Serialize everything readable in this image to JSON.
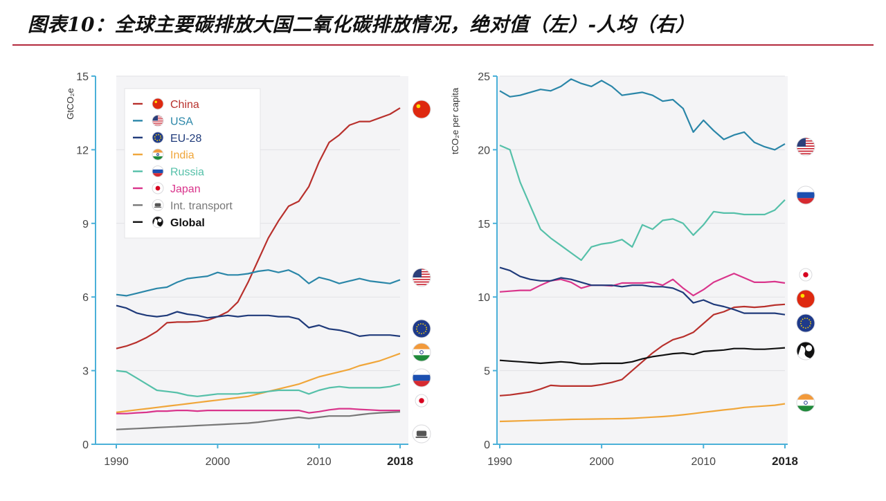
{
  "header": {
    "title": "图表10：全球主要碳排放大国二氧化碳排放情况，绝对值（左）-人均（右）"
  },
  "colors": {
    "China": "#b8302c",
    "USA": "#2a86a8",
    "EU-28": "#1f3a7a",
    "India": "#f0a63a",
    "Russia": "#55c0a9",
    "Japan": "#d9348b",
    "Int. transport": "#777777",
    "Global": "#111111",
    "header_rule": "#b3283c",
    "axis": "#4ab0d8"
  },
  "chart_data": [
    {
      "type": "line",
      "ylabel": "GtCO₂e",
      "xlim": [
        1990,
        2018
      ],
      "ylim": [
        0,
        15
      ],
      "xticks": [
        "1990",
        "2000",
        "2010",
        "2018"
      ],
      "yticks": [
        "0",
        "3",
        "6",
        "9",
        "12",
        "15"
      ],
      "legend_position": "top-left",
      "legend": [
        "China",
        "USA",
        "EU-28",
        "India",
        "Russia",
        "Japan",
        "Int. transport",
        "Global"
      ],
      "x": [
        1990,
        1991,
        1992,
        1993,
        1994,
        1995,
        1996,
        1997,
        1998,
        1999,
        2000,
        2001,
        2002,
        2003,
        2004,
        2005,
        2006,
        2007,
        2008,
        2009,
        2010,
        2011,
        2012,
        2013,
        2014,
        2015,
        2016,
        2017,
        2018
      ],
      "series": [
        {
          "name": "China",
          "values": [
            3.9,
            4.0,
            4.15,
            4.35,
            4.6,
            4.95,
            4.98,
            4.98,
            5.0,
            5.05,
            5.2,
            5.4,
            5.8,
            6.6,
            7.5,
            8.4,
            9.1,
            9.7,
            9.9,
            10.5,
            11.5,
            12.3,
            12.6,
            13.0,
            13.15,
            13.15,
            13.3,
            13.45,
            13.7
          ]
        },
        {
          "name": "USA",
          "values": [
            6.1,
            6.05,
            6.15,
            6.25,
            6.35,
            6.4,
            6.6,
            6.75,
            6.8,
            6.85,
            7.0,
            6.9,
            6.9,
            6.95,
            7.05,
            7.1,
            7.0,
            7.1,
            6.9,
            6.55,
            6.8,
            6.7,
            6.55,
            6.65,
            6.75,
            6.65,
            6.6,
            6.55,
            6.7
          ]
        },
        {
          "name": "EU-28",
          "values": [
            5.65,
            5.55,
            5.35,
            5.25,
            5.2,
            5.25,
            5.4,
            5.3,
            5.25,
            5.15,
            5.2,
            5.25,
            5.2,
            5.25,
            5.25,
            5.25,
            5.2,
            5.2,
            5.1,
            4.75,
            4.85,
            4.7,
            4.65,
            4.55,
            4.4,
            4.45,
            4.45,
            4.45,
            4.4
          ]
        },
        {
          "name": "India",
          "values": [
            1.3,
            1.35,
            1.4,
            1.45,
            1.5,
            1.55,
            1.6,
            1.65,
            1.7,
            1.75,
            1.8,
            1.85,
            1.9,
            1.95,
            2.05,
            2.15,
            2.25,
            2.35,
            2.45,
            2.6,
            2.75,
            2.85,
            2.95,
            3.05,
            3.2,
            3.3,
            3.4,
            3.55,
            3.7
          ]
        },
        {
          "name": "Russia",
          "values": [
            3.0,
            2.95,
            2.7,
            2.45,
            2.2,
            2.15,
            2.1,
            2.0,
            1.95,
            2.0,
            2.05,
            2.05,
            2.05,
            2.1,
            2.1,
            2.15,
            2.2,
            2.2,
            2.2,
            2.05,
            2.2,
            2.3,
            2.35,
            2.3,
            2.3,
            2.3,
            2.3,
            2.35,
            2.45
          ]
        },
        {
          "name": "Japan",
          "values": [
            1.25,
            1.25,
            1.28,
            1.3,
            1.35,
            1.35,
            1.38,
            1.38,
            1.35,
            1.38,
            1.38,
            1.38,
            1.38,
            1.38,
            1.38,
            1.38,
            1.38,
            1.38,
            1.38,
            1.28,
            1.33,
            1.4,
            1.45,
            1.45,
            1.42,
            1.4,
            1.38,
            1.38,
            1.38
          ]
        },
        {
          "name": "Int. transport",
          "values": [
            0.6,
            0.62,
            0.64,
            0.66,
            0.68,
            0.7,
            0.72,
            0.74,
            0.76,
            0.78,
            0.8,
            0.82,
            0.84,
            0.86,
            0.9,
            0.95,
            1.0,
            1.05,
            1.1,
            1.05,
            1.1,
            1.15,
            1.15,
            1.15,
            1.2,
            1.25,
            1.28,
            1.3,
            1.32
          ]
        }
      ]
    },
    {
      "type": "line",
      "ylabel": "tCO₂e per capita",
      "xlim": [
        1990,
        2018
      ],
      "ylim": [
        0,
        25
      ],
      "xticks": [
        "1990",
        "2000",
        "2010",
        "2018"
      ],
      "yticks": [
        "0",
        "5",
        "10",
        "15",
        "20",
        "25"
      ],
      "x": [
        1990,
        1991,
        1992,
        1993,
        1994,
        1995,
        1996,
        1997,
        1998,
        1999,
        2000,
        2001,
        2002,
        2003,
        2004,
        2005,
        2006,
        2007,
        2008,
        2009,
        2010,
        2011,
        2012,
        2013,
        2014,
        2015,
        2016,
        2017,
        2018
      ],
      "series": [
        {
          "name": "USA",
          "values": [
            24.0,
            23.6,
            23.7,
            23.9,
            24.1,
            24.0,
            24.3,
            24.8,
            24.5,
            24.3,
            24.7,
            24.3,
            23.7,
            23.8,
            23.9,
            23.7,
            23.3,
            23.4,
            22.8,
            21.2,
            22.0,
            21.3,
            20.7,
            21.0,
            21.2,
            20.5,
            20.2,
            20.0,
            20.4
          ]
        },
        {
          "name": "Russia",
          "values": [
            20.3,
            20.0,
            17.8,
            16.2,
            14.6,
            14.0,
            13.5,
            13.0,
            12.5,
            13.4,
            13.6,
            13.7,
            13.9,
            13.4,
            14.9,
            14.6,
            15.2,
            15.3,
            15.0,
            14.2,
            14.9,
            15.8,
            15.7,
            15.7,
            15.6,
            15.6,
            15.6,
            15.9,
            16.6
          ]
        },
        {
          "name": "Japan",
          "values": [
            10.35,
            10.4,
            10.45,
            10.45,
            10.8,
            11.1,
            11.2,
            11.0,
            10.6,
            10.8,
            10.8,
            10.75,
            10.95,
            10.95,
            10.95,
            11.0,
            10.8,
            11.2,
            10.6,
            10.1,
            10.5,
            11.0,
            11.3,
            11.6,
            11.3,
            11.0,
            11.0,
            11.05,
            10.95
          ]
        },
        {
          "name": "China",
          "values": [
            3.3,
            3.35,
            3.45,
            3.55,
            3.75,
            4.0,
            3.95,
            3.95,
            3.95,
            3.95,
            4.05,
            4.2,
            4.4,
            5.0,
            5.6,
            6.2,
            6.7,
            7.1,
            7.3,
            7.6,
            8.2,
            8.8,
            9.0,
            9.3,
            9.35,
            9.3,
            9.35,
            9.45,
            9.5
          ]
        },
        {
          "name": "EU-28",
          "values": [
            12.0,
            11.8,
            11.4,
            11.2,
            11.1,
            11.1,
            11.3,
            11.2,
            11.0,
            10.8,
            10.8,
            10.8,
            10.7,
            10.8,
            10.8,
            10.7,
            10.7,
            10.6,
            10.3,
            9.6,
            9.8,
            9.5,
            9.35,
            9.15,
            8.9,
            8.9,
            8.9,
            8.9,
            8.8
          ]
        },
        {
          "name": "Global",
          "values": [
            5.7,
            5.65,
            5.6,
            5.55,
            5.5,
            5.55,
            5.6,
            5.55,
            5.45,
            5.45,
            5.5,
            5.5,
            5.5,
            5.6,
            5.8,
            5.95,
            6.05,
            6.15,
            6.2,
            6.1,
            6.3,
            6.35,
            6.4,
            6.5,
            6.5,
            6.45,
            6.45,
            6.5,
            6.55
          ]
        },
        {
          "name": "India",
          "values": [
            1.55,
            1.57,
            1.59,
            1.61,
            1.63,
            1.65,
            1.67,
            1.69,
            1.7,
            1.71,
            1.72,
            1.73,
            1.74,
            1.76,
            1.8,
            1.84,
            1.88,
            1.93,
            2.0,
            2.08,
            2.17,
            2.25,
            2.33,
            2.4,
            2.5,
            2.55,
            2.6,
            2.65,
            2.75
          ]
        }
      ]
    }
  ]
}
